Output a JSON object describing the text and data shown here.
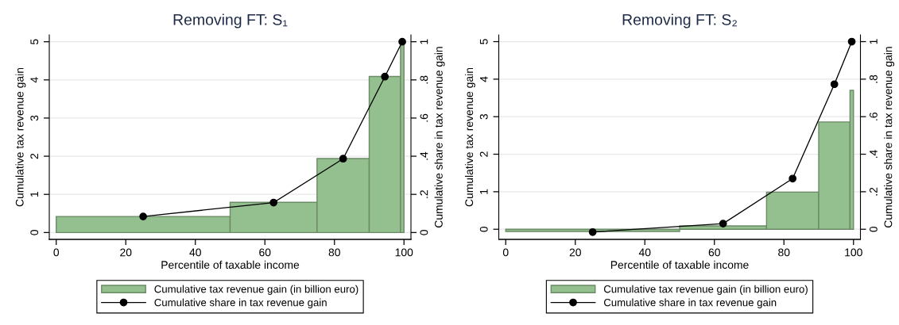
{
  "chart_data": [
    {
      "type": "histogram",
      "title": "Removing FT: S₁",
      "xlabel": "Percentile of taxable income",
      "ylabel": "Cumulative tax revenue gain",
      "y2label": "Cumulative share in tax revenue gain",
      "bins": [
        0,
        50,
        75,
        90,
        99,
        100
      ],
      "series": [
        {
          "name": "Cumulative tax revenue gain (in billion euro)",
          "color": "#94bf8e",
          "values": [
            0.42,
            0.79,
            1.94,
            4.09,
            5.0
          ]
        },
        {
          "name": "Cumulative share in tax revenue gain",
          "type": "line",
          "axis": "y2",
          "color": "#000000",
          "marker": "circle",
          "line_style": "solid",
          "x": [
            25,
            62.5,
            82.5,
            94.5,
            99.5
          ],
          "values": [
            0.084,
            0.157,
            0.387,
            0.817,
            1.0
          ]
        }
      ],
      "xlim": [
        -2,
        102
      ],
      "xticks": [
        0,
        20,
        40,
        60,
        80,
        100
      ],
      "ylim": [
        -0.18,
        5.18
      ],
      "yticks": [
        0,
        1,
        2,
        3,
        4,
        5
      ],
      "y2lim": [
        -0.036,
        1.036
      ],
      "y2ticks": [
        0,
        {
          "value": 0.2,
          "label": ".2"
        },
        {
          "value": 0.4,
          "label": ".4"
        },
        {
          "value": 0.6,
          "label": ".6"
        },
        {
          "value": 0.8,
          "label": ".8"
        },
        1
      ],
      "grid": "y",
      "legend": "bottom"
    },
    {
      "type": "histogram",
      "title": "Removing FT: S₂",
      "xlabel": "Percentile of taxable income",
      "ylabel": "Cumulative tax revenue gain",
      "y2label": "Cumulative share in tax revenue gain",
      "bins": [
        0,
        50,
        75,
        90,
        99,
        100
      ],
      "series": [
        {
          "name": "Cumulative tax revenue gain (in billion euro)",
          "color": "#94bf8e",
          "values": [
            -0.06,
            0.09,
            0.99,
            2.86,
            3.7
          ]
        },
        {
          "name": "Cumulative share in tax revenue gain",
          "type": "line",
          "axis": "y2",
          "color": "#000000",
          "marker": "circle",
          "line_style": "solid",
          "x": [
            25,
            62.5,
            82.5,
            94.5,
            99.5
          ],
          "values": [
            -0.015,
            0.03,
            0.27,
            0.773,
            1.0
          ]
        }
      ],
      "xlim": [
        -2,
        102
      ],
      "xticks": [
        0,
        20,
        40,
        60,
        80,
        100
      ],
      "ylim": [
        -0.27,
        5.18
      ],
      "yticks": [
        0,
        1,
        2,
        3,
        4,
        5
      ],
      "y2lim": [
        -0.054,
        1.036
      ],
      "y2ticks": [
        0,
        {
          "value": 0.2,
          "label": ".2"
        },
        {
          "value": 0.4,
          "label": ".4"
        },
        {
          "value": 0.6,
          "label": ".6"
        },
        {
          "value": 0.8,
          "label": ".8"
        },
        1
      ],
      "grid": "y",
      "legend": "bottom"
    }
  ]
}
